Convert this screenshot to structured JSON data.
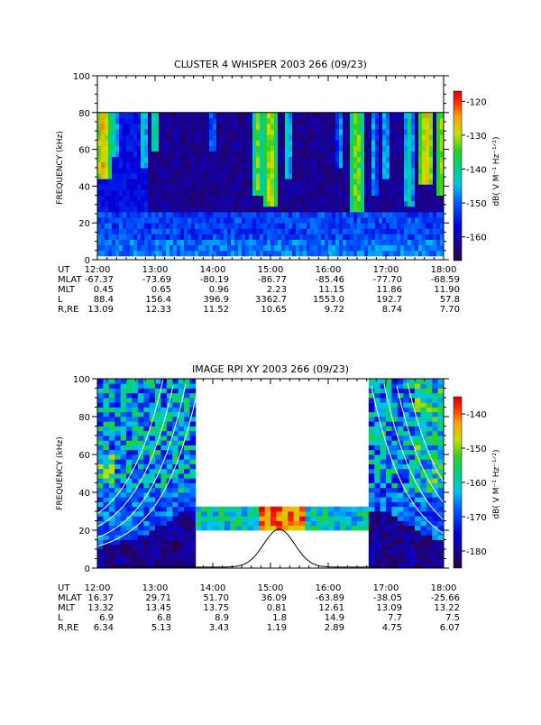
{
  "chart_data": [
    {
      "type": "heatmap",
      "title": "CLUSTER 4 WHISPER 2003 266 (09/23)",
      "ylabel": "FREQUENCY (kHz)",
      "ylim": [
        0,
        100
      ],
      "yticks": [
        0,
        20,
        40,
        60,
        80,
        100
      ],
      "x_ticks": [
        "12:00",
        "13:00",
        "14:00",
        "15:00",
        "16:00",
        "17:00",
        "18:00"
      ],
      "xlim_hours": [
        12,
        18
      ],
      "data_top_khz": 80,
      "data_band_bottom_khz": 2,
      "colorbar": {
        "label": "dB( V M⁻¹ Hz⁻¹ᐟ²)",
        "range": [
          -167,
          -117
        ],
        "ticks": [
          -120,
          -130,
          -140,
          -150,
          -160
        ]
      },
      "bursts": [
        {
          "t": 12.1,
          "w": 0.12,
          "fmin": 45,
          "level": -125
        },
        {
          "t": 12.3,
          "w": 0.08,
          "fmin": 55,
          "level": -140
        },
        {
          "t": 12.8,
          "w": 0.08,
          "fmin": 50,
          "level": -140
        },
        {
          "t": 13.0,
          "w": 0.06,
          "fmin": 60,
          "level": -135
        },
        {
          "t": 14.0,
          "w": 0.06,
          "fmin": 60,
          "level": -145
        },
        {
          "t": 14.78,
          "w": 0.1,
          "fmin": 35,
          "level": -133
        },
        {
          "t": 15.0,
          "w": 0.12,
          "fmin": 30,
          "level": -128
        },
        {
          "t": 15.3,
          "w": 0.08,
          "fmin": 45,
          "level": -140
        },
        {
          "t": 16.2,
          "w": 0.05,
          "fmin": 50,
          "level": -143
        },
        {
          "t": 16.5,
          "w": 0.12,
          "fmin": 25,
          "level": -130
        },
        {
          "t": 16.8,
          "w": 0.05,
          "fmin": 35,
          "level": -142
        },
        {
          "t": 17.0,
          "w": 0.05,
          "fmin": 45,
          "level": -140
        },
        {
          "t": 17.4,
          "w": 0.1,
          "fmin": 30,
          "level": -140
        },
        {
          "t": 17.7,
          "w": 0.12,
          "fmin": 40,
          "level": -125
        },
        {
          "t": 17.95,
          "w": 0.06,
          "fmin": 35,
          "level": -128
        }
      ],
      "ephemeris": {
        "labels": [
          "UT",
          "MLAT",
          "MLT",
          "L",
          "R,RE"
        ],
        "columns": [
          [
            "12:00",
            "-67.37",
            "0.45",
            "88.4",
            "13.09"
          ],
          [
            "13:00",
            "-73.69",
            "0.65",
            "156.4",
            "12.33"
          ],
          [
            "14:00",
            "-80.19",
            "0.96",
            "396.9",
            "11.52"
          ],
          [
            "15:00",
            "-86.77",
            "2.23",
            "3362.7",
            "10.65"
          ],
          [
            "16:00",
            "-85.46",
            "11.15",
            "1553.0",
            "9.72"
          ],
          [
            "17:00",
            "-77.70",
            "11.86",
            "192.7",
            "8.74"
          ],
          [
            "18:00",
            "-68.59",
            "11.90",
            "57.8",
            "7.70"
          ]
        ]
      }
    },
    {
      "type": "heatmap",
      "title": "IMAGE RPI XY 2003 266 (09/23)",
      "ylabel": "FREQUENCY (kHz)",
      "ylim": [
        0,
        100
      ],
      "yticks": [
        0,
        20,
        40,
        60,
        80,
        100
      ],
      "x_ticks": [
        "12:00",
        "13:00",
        "14:00",
        "15:00",
        "16:00",
        "17:00",
        "18:00"
      ],
      "xlim_hours": [
        12,
        18
      ],
      "colorbar": {
        "label": "dB( V M⁻¹ Hz⁻¹ᐟ²)",
        "range": [
          -185,
          -135
        ],
        "ticks": [
          -140,
          -150,
          -160,
          -170,
          -180
        ]
      },
      "data_gaps": [
        {
          "t0": 13.75,
          "t1": 16.75,
          "f0": 33,
          "f1": 100
        },
        {
          "t0": 13.75,
          "t1": 16.75,
          "f0": 0,
          "f1": 20
        }
      ],
      "ephemeris": {
        "labels": [
          "UT",
          "MLAT",
          "MLT",
          "L",
          "R,RE"
        ],
        "columns": [
          [
            "12:00",
            "16.37",
            "13.32",
            "6.9",
            "6.34"
          ],
          [
            "13:00",
            "29.71",
            "13.45",
            "6.8",
            "5.13"
          ],
          [
            "14:00",
            "51.70",
            "13.75",
            "8.9",
            "3.43"
          ],
          [
            "15:00",
            "36.09",
            "0.81",
            "1.8",
            "1.19"
          ],
          [
            "16:00",
            "-63.89",
            "12.61",
            "14.9",
            "2.89"
          ],
          [
            "17:00",
            "-38.05",
            "13.09",
            "7.7",
            "4.75"
          ],
          [
            "18:00",
            "-25.66",
            "13.22",
            "7.5",
            "6.07"
          ]
        ]
      }
    }
  ]
}
